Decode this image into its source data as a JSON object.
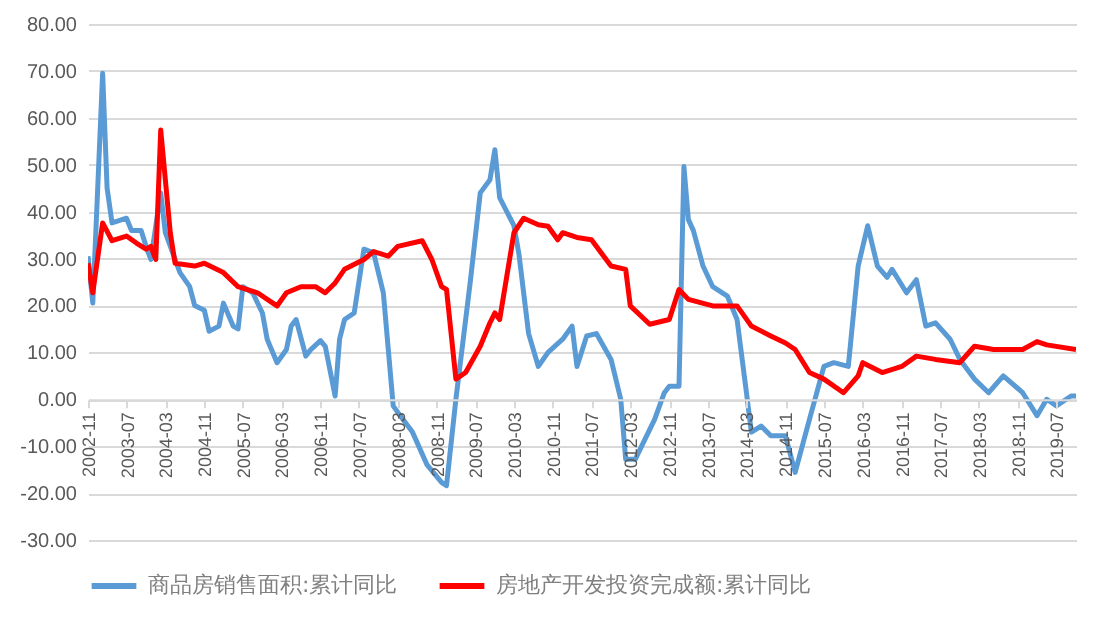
{
  "chart_data": {
    "type": "line",
    "xlim": [
      "2002-11",
      "2019-11"
    ],
    "xticks": [
      "2002-11",
      "2003-07",
      "2004-03",
      "2004-11",
      "2005-07",
      "2006-03",
      "2006-11",
      "2007-07",
      "2008-03",
      "2008-11",
      "2009-07",
      "2010-03",
      "2010-11",
      "2011-07",
      "2012-03",
      "2012-11",
      "2013-07",
      "2014-03",
      "2014-11",
      "2015-07",
      "2016-03",
      "2016-11",
      "2017-07",
      "2018-03",
      "2018-11",
      "2019-07"
    ],
    "ylim": [
      -30,
      80
    ],
    "yticks": [
      {
        "value": -30,
        "label": "-30.00"
      },
      {
        "value": -20,
        "label": "-20.00"
      },
      {
        "value": -10,
        "label": "-10.00"
      },
      {
        "value": 0,
        "label": "0.00"
      },
      {
        "value": 10,
        "label": "10.00"
      },
      {
        "value": 20,
        "label": "20.00"
      },
      {
        "value": 30,
        "label": "30.00"
      },
      {
        "value": 40,
        "label": "40.00"
      },
      {
        "value": 50,
        "label": "50.00"
      },
      {
        "value": 60,
        "label": "60.00"
      },
      {
        "value": 70,
        "label": "70.00"
      },
      {
        "value": 80,
        "label": "80.00"
      }
    ],
    "grid": "y",
    "legend": "bottom",
    "marker": "none",
    "line_style": "solid",
    "series": [
      {
        "name": "商品房销售面积:累计同比",
        "color": "#5b9bd5",
        "x": [
          "2002-11",
          "2002-12",
          "2003-02",
          "2003-03",
          "2003-04",
          "2003-07",
          "2003-08",
          "2003-10",
          "2003-11",
          "2003-12",
          "2004-02",
          "2004-03",
          "2004-06",
          "2004-08",
          "2004-09",
          "2004-11",
          "2004-12",
          "2005-02",
          "2005-03",
          "2005-05",
          "2005-06",
          "2005-07",
          "2005-09",
          "2005-11",
          "2005-12",
          "2006-02",
          "2006-04",
          "2006-05",
          "2006-06",
          "2006-08",
          "2006-09",
          "2006-11",
          "2006-12",
          "2007-02",
          "2007-03",
          "2007-04",
          "2007-06",
          "2007-08",
          "2007-10",
          "2007-12",
          "2008-02",
          "2008-03",
          "2008-06",
          "2008-09",
          "2008-12",
          "2009-01",
          "2009-03",
          "2009-06",
          "2009-08",
          "2009-10",
          "2009-11",
          "2009-12",
          "2010-03",
          "2010-04",
          "2010-06",
          "2010-08",
          "2010-10",
          "2011-01",
          "2011-03",
          "2011-04",
          "2011-06",
          "2011-08",
          "2011-11",
          "2012-01",
          "2012-02",
          "2012-04",
          "2012-08",
          "2012-10",
          "2012-11",
          "2013-01",
          "2013-02",
          "2013-03",
          "2013-04",
          "2013-06",
          "2013-08",
          "2013-11",
          "2014-01",
          "2014-03",
          "2014-04",
          "2014-06",
          "2014-08",
          "2014-11",
          "2015-01",
          "2015-04",
          "2015-07",
          "2015-09",
          "2015-12",
          "2016-02",
          "2016-04",
          "2016-06",
          "2016-08",
          "2016-09",
          "2016-12",
          "2017-02",
          "2017-04",
          "2017-06",
          "2017-09",
          "2017-11",
          "2018-02",
          "2018-05",
          "2018-08",
          "2018-12",
          "2019-03",
          "2019-05",
          "2019-07",
          "2019-10",
          "2019-11"
        ],
        "values": [
          30.5,
          20.5,
          69.5,
          45,
          37.6,
          38.6,
          36,
          36,
          32.6,
          29.8,
          44,
          35.5,
          27,
          24,
          20,
          19,
          14.5,
          15.6,
          20.5,
          15.6,
          15,
          24,
          22.7,
          18.4,
          12.8,
          7.8,
          10.6,
          15.6,
          17,
          9.2,
          10.6,
          12.5,
          11.3,
          0.7,
          12.8,
          17,
          18.4,
          32,
          31.2,
          22.7,
          -1.4,
          -2.8,
          -7,
          -14,
          -17.7,
          -18.4,
          0,
          25.5,
          44,
          46.8,
          53.2,
          43,
          37,
          31,
          14,
          7,
          10,
          12.8,
          15.6,
          7,
          13.5,
          14,
          8.5,
          0,
          -12.8,
          -12.8,
          -4.3,
          1.4,
          2.8,
          2.8,
          49.6,
          38.3,
          36,
          28.4,
          24,
          22,
          17,
          1.4,
          -7,
          -5.7,
          -7.8,
          -7.8,
          -15.6,
          -4.3,
          7,
          7.8,
          7,
          28.4,
          37,
          28.4,
          26,
          27.7,
          22.7,
          25.5,
          15.6,
          16.3,
          12.8,
          8.5,
          4.3,
          1.4,
          5,
          1.4,
          -3.5,
          0,
          -1.4,
          0.7,
          0.7
        ]
      },
      {
        "name": "房地产开发投资完成额:累计同比",
        "color": "#ff0000",
        "x": [
          "2002-11",
          "2002-12",
          "2003-02",
          "2003-04",
          "2003-07",
          "2003-09",
          "2003-11",
          "2003-12",
          "2004-01",
          "2004-02",
          "2004-04",
          "2004-05",
          "2004-09",
          "2004-11",
          "2005-03",
          "2005-06",
          "2005-10",
          "2006-01",
          "2006-02",
          "2006-04",
          "2006-07",
          "2006-10",
          "2006-12",
          "2007-02",
          "2007-04",
          "2007-08",
          "2007-10",
          "2008-01",
          "2008-03",
          "2008-08",
          "2008-10",
          "2008-12",
          "2009-01",
          "2009-03",
          "2009-05",
          "2009-08",
          "2009-10",
          "2009-11",
          "2009-12",
          "2010-03",
          "2010-05",
          "2010-08",
          "2010-10",
          "2010-12",
          "2011-01",
          "2011-04",
          "2011-07",
          "2011-11",
          "2012-02",
          "2012-03",
          "2012-07",
          "2012-11",
          "2013-01",
          "2013-03",
          "2013-08",
          "2014-01",
          "2014-04",
          "2014-08",
          "2014-11",
          "2015-01",
          "2015-04",
          "2015-07",
          "2015-11",
          "2016-02",
          "2016-03",
          "2016-07",
          "2016-11",
          "2017-02",
          "2017-06",
          "2017-11",
          "2018-02",
          "2018-06",
          "2018-12",
          "2019-03",
          "2019-05",
          "2019-11"
        ],
        "values": [
          29,
          22.7,
          37.6,
          33.8,
          34.8,
          33.3,
          32,
          32.6,
          29.8,
          57.4,
          35.5,
          29,
          28.4,
          29,
          27,
          24,
          22.7,
          20.6,
          19.9,
          22.7,
          24,
          24,
          22.7,
          24.8,
          27.7,
          29.8,
          31.5,
          30.5,
          32.6,
          33.8,
          29.8,
          24,
          23.4,
          4.3,
          5.7,
          11.3,
          16.3,
          18.4,
          17,
          35.5,
          38.6,
          37.2,
          36.9,
          34,
          35.5,
          34.5,
          34,
          28.4,
          27.7,
          19.9,
          16,
          17,
          23.4,
          21.3,
          19.9,
          19.9,
          15.6,
          13.5,
          12,
          10.6,
          5.7,
          4.3,
          1.4,
          5,
          7.8,
          5.7,
          7,
          9.2,
          8.5,
          7.8,
          11.3,
          10.6,
          10.6,
          12.3,
          11.6,
          10.6
        ]
      }
    ]
  }
}
